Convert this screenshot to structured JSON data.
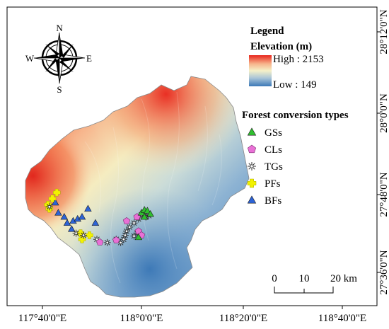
{
  "frame": {
    "x_ticks": [
      "117°40'0\"E",
      "118°0'0\"E",
      "118°20'0\"E",
      "118°40'0\"E"
    ],
    "y_ticks": [
      "28°12'0\"N",
      "28°0'0\"N",
      "27°48'0\"N",
      "27°36'0\"N"
    ]
  },
  "compass": {
    "n": "N",
    "s": "S",
    "e": "E",
    "w": "W"
  },
  "legend": {
    "title": "Legend",
    "elevation_title": "Elevation (m)",
    "high_label": "High : 2153",
    "low_label": "Low : 149",
    "ramp_colors": [
      "#e8261c",
      "#f7b58c",
      "#f5f1c8",
      "#a8c4d8",
      "#3b78b7"
    ],
    "types_title": "Forest conversion types",
    "types": [
      {
        "label": "GSs",
        "symbol": "triangle",
        "color": "#2fbf2f"
      },
      {
        "label": "CLs",
        "symbol": "pentagon",
        "color": "#e970d6"
      },
      {
        "label": "TGs",
        "symbol": "asterisk",
        "color": "#333333"
      },
      {
        "label": "PFs",
        "symbol": "cross",
        "color": "#f2f200"
      },
      {
        "label": "BFs",
        "symbol": "triangle",
        "color": "#2d63d6"
      }
    ]
  },
  "scale_bar": {
    "t0": "0",
    "t1": "10",
    "t2": "20 km"
  },
  "sample_sites": [
    {
      "type": "BFs",
      "lon": 117.71,
      "lat": 27.78
    },
    {
      "type": "BFs",
      "lon": 117.72,
      "lat": 27.755
    },
    {
      "type": "BFs",
      "lon": 117.74,
      "lat": 27.745
    },
    {
      "type": "BFs",
      "lon": 117.75,
      "lat": 27.73
    },
    {
      "type": "BFs",
      "lon": 117.77,
      "lat": 27.735
    },
    {
      "type": "BFs",
      "lon": 117.785,
      "lat": 27.74
    },
    {
      "type": "BFs",
      "lon": 117.8,
      "lat": 27.745
    },
    {
      "type": "BFs",
      "lon": 117.82,
      "lat": 27.765
    },
    {
      "type": "BFs",
      "lon": 117.845,
      "lat": 27.73
    },
    {
      "type": "BFs",
      "lon": 117.765,
      "lat": 27.715
    },
    {
      "type": "PFs",
      "lon": 117.685,
      "lat": 27.775
    },
    {
      "type": "PFs",
      "lon": 117.69,
      "lat": 27.765
    },
    {
      "type": "PFs",
      "lon": 117.7,
      "lat": 27.79
    },
    {
      "type": "PFs",
      "lon": 117.715,
      "lat": 27.805
    },
    {
      "type": "PFs",
      "lon": 117.795,
      "lat": 27.705
    },
    {
      "type": "PFs",
      "lon": 117.8,
      "lat": 27.69
    },
    {
      "type": "PFs",
      "lon": 117.825,
      "lat": 27.7
    },
    {
      "type": "TGs",
      "lon": 117.69,
      "lat": 27.77
    },
    {
      "type": "TGs",
      "lon": 117.78,
      "lat": 27.705
    },
    {
      "type": "TGs",
      "lon": 117.805,
      "lat": 27.7
    },
    {
      "type": "TGs",
      "lon": 117.85,
      "lat": 27.69
    },
    {
      "type": "TGs",
      "lon": 117.885,
      "lat": 27.682
    },
    {
      "type": "TGs",
      "lon": 117.915,
      "lat": 27.69
    },
    {
      "type": "TGs",
      "lon": 117.93,
      "lat": 27.682
    },
    {
      "type": "TGs",
      "lon": 117.94,
      "lat": 27.69
    },
    {
      "type": "TGs",
      "lon": 117.945,
      "lat": 27.7
    },
    {
      "type": "TGs",
      "lon": 117.95,
      "lat": 27.71
    },
    {
      "type": "TGs",
      "lon": 117.96,
      "lat": 27.72
    },
    {
      "type": "TGs",
      "lon": 117.975,
      "lat": 27.73
    },
    {
      "type": "TGs",
      "lon": 117.99,
      "lat": 27.74
    },
    {
      "type": "TGs",
      "lon": 118.0,
      "lat": 27.75
    },
    {
      "type": "TGs",
      "lon": 118.01,
      "lat": 27.755
    },
    {
      "type": "TGs",
      "lon": 118.015,
      "lat": 27.745
    },
    {
      "type": "TGs",
      "lon": 118.025,
      "lat": 27.748
    },
    {
      "type": "TGs",
      "lon": 117.985,
      "lat": 27.705
    },
    {
      "type": "TGs",
      "lon": 117.975,
      "lat": 27.698
    },
    {
      "type": "CLs",
      "lon": 117.86,
      "lat": 27.683
    },
    {
      "type": "CLs",
      "lon": 117.915,
      "lat": 27.688
    },
    {
      "type": "CLs",
      "lon": 117.95,
      "lat": 27.735
    },
    {
      "type": "CLs",
      "lon": 117.985,
      "lat": 27.745
    },
    {
      "type": "CLs",
      "lon": 117.99,
      "lat": 27.71
    },
    {
      "type": "CLs",
      "lon": 118.0,
      "lat": 27.7
    },
    {
      "type": "GSs",
      "lon": 117.99,
      "lat": 27.695
    },
    {
      "type": "GSs",
      "lon": 118.0,
      "lat": 27.755
    },
    {
      "type": "GSs",
      "lon": 118.01,
      "lat": 27.762
    },
    {
      "type": "GSs",
      "lon": 118.02,
      "lat": 27.76
    },
    {
      "type": "GSs",
      "lon": 118.03,
      "lat": 27.752
    },
    {
      "type": "GSs",
      "lon": 118.01,
      "lat": 27.745
    }
  ]
}
